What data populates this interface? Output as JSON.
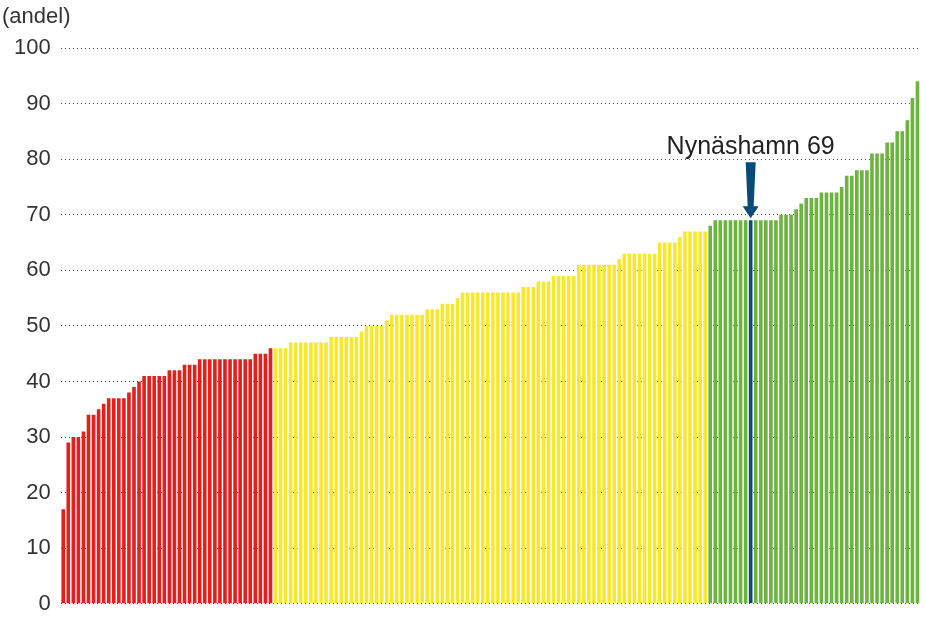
{
  "chart_data": {
    "type": "bar",
    "y_label": "(andel)",
    "values": [
      17,
      29,
      30,
      30,
      31,
      34,
      34,
      35,
      36,
      37,
      37,
      37,
      37,
      38,
      39,
      40,
      41,
      41,
      41,
      41,
      41,
      42,
      42,
      42,
      43,
      43,
      43,
      44,
      44,
      44,
      44,
      44,
      44,
      44,
      44,
      44,
      44,
      44,
      45,
      45,
      45,
      46,
      46,
      46,
      46,
      47,
      47,
      47,
      47,
      47,
      47,
      47,
      47,
      48,
      48,
      48,
      48,
      48,
      48,
      49,
      50,
      50,
      50,
      50,
      51,
      52,
      52,
      52,
      52,
      52,
      52,
      52,
      53,
      53,
      53,
      54,
      54,
      54,
      55,
      56,
      56,
      56,
      56,
      56,
      56,
      56,
      56,
      56,
      56,
      56,
      56,
      57,
      57,
      57,
      58,
      58,
      58,
      59,
      59,
      59,
      59,
      59,
      61,
      61,
      61,
      61,
      61,
      61,
      61,
      61,
      62,
      63,
      63,
      63,
      63,
      63,
      63,
      63,
      65,
      65,
      65,
      65,
      66,
      67,
      67,
      67,
      67,
      67,
      68,
      69,
      69,
      69,
      69,
      69,
      69,
      69,
      69,
      69,
      69,
      69,
      69,
      69,
      70,
      70,
      70,
      71,
      72,
      73,
      73,
      73,
      74,
      74,
      74,
      74,
      75,
      77,
      77,
      78,
      78,
      78,
      81,
      81,
      81,
      83,
      83,
      85,
      85,
      87,
      91,
      94
    ],
    "colors": [
      "#e3211c",
      "#e3211c",
      "#e3211c",
      "#e3211c",
      "#e3211c",
      "#e3211c",
      "#e3211c",
      "#e3211c",
      "#e3211c",
      "#e3211c",
      "#e3211c",
      "#e3211c",
      "#e3211c",
      "#e3211c",
      "#e3211c",
      "#e3211c",
      "#e3211c",
      "#e3211c",
      "#e3211c",
      "#e3211c",
      "#e3211c",
      "#e3211c",
      "#e3211c",
      "#e3211c",
      "#e3211c",
      "#e3211c",
      "#e3211c",
      "#e3211c",
      "#e3211c",
      "#e3211c",
      "#e3211c",
      "#e3211c",
      "#e3211c",
      "#e3211c",
      "#e3211c",
      "#e3211c",
      "#e3211c",
      "#e3211c",
      "#e3211c",
      "#e3211c",
      "#e3211c",
      "#e3211c",
      "#f7e731",
      "#f7e731",
      "#f7e731",
      "#f7e731",
      "#f7e731",
      "#f7e731",
      "#f7e731",
      "#f7e731",
      "#f7e731",
      "#f7e731",
      "#f7e731",
      "#f7e731",
      "#f7e731",
      "#f7e731",
      "#f7e731",
      "#f7e731",
      "#f7e731",
      "#f7e731",
      "#f7e731",
      "#f7e731",
      "#f7e731",
      "#f7e731",
      "#f7e731",
      "#f7e731",
      "#f7e731",
      "#f7e731",
      "#f7e731",
      "#f7e731",
      "#f7e731",
      "#f7e731",
      "#f7e731",
      "#f7e731",
      "#f7e731",
      "#f7e731",
      "#f7e731",
      "#f7e731",
      "#f7e731",
      "#f7e731",
      "#f7e731",
      "#f7e731",
      "#f7e731",
      "#f7e731",
      "#f7e731",
      "#f7e731",
      "#f7e731",
      "#f7e731",
      "#f7e731",
      "#f7e731",
      "#f7e731",
      "#f7e731",
      "#f7e731",
      "#f7e731",
      "#f7e731",
      "#f7e731",
      "#f7e731",
      "#f7e731",
      "#f7e731",
      "#f7e731",
      "#f7e731",
      "#f7e731",
      "#f7e731",
      "#f7e731",
      "#f7e731",
      "#f7e731",
      "#f7e731",
      "#f7e731",
      "#f7e731",
      "#f7e731",
      "#f7e731",
      "#f7e731",
      "#f7e731",
      "#f7e731",
      "#f7e731",
      "#f7e731",
      "#f7e731",
      "#f7e731",
      "#f7e731",
      "#f7e731",
      "#f7e731",
      "#f7e731",
      "#f7e731",
      "#f7e731",
      "#f7e731",
      "#f7e731",
      "#f7e731",
      "#f7e731",
      "#6cb33f",
      "#6cb33f",
      "#6cb33f",
      "#6cb33f",
      "#6cb33f",
      "#6cb33f",
      "#6cb33f",
      "#6cb33f",
      "#0a4a78",
      "#6cb33f",
      "#6cb33f",
      "#6cb33f",
      "#6cb33f",
      "#6cb33f",
      "#6cb33f",
      "#6cb33f",
      "#6cb33f",
      "#6cb33f",
      "#6cb33f",
      "#6cb33f",
      "#6cb33f",
      "#6cb33f",
      "#6cb33f",
      "#6cb33f",
      "#6cb33f",
      "#6cb33f",
      "#6cb33f",
      "#6cb33f",
      "#6cb33f",
      "#6cb33f",
      "#6cb33f",
      "#6cb33f",
      "#6cb33f",
      "#6cb33f",
      "#6cb33f",
      "#6cb33f",
      "#6cb33f",
      "#6cb33f",
      "#6cb33f",
      "#6cb33f",
      "#6cb33f",
      "#6cb33f"
    ],
    "ylim": [
      0,
      100
    ],
    "yticks": [
      0,
      10,
      20,
      30,
      40,
      50,
      60,
      70,
      80,
      90,
      100
    ],
    "grid": true,
    "tick_labels": "y",
    "annotations": [
      {
        "text": "Nynäshamn 69",
        "index": 136
      }
    ]
  }
}
